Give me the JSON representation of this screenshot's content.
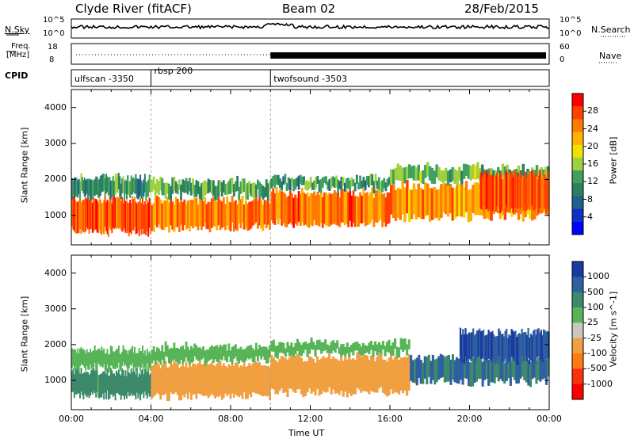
{
  "header": {
    "station": "Clyde River (fitACF)",
    "beam": "Beam 02",
    "date": "28/Feb/2015"
  },
  "top_panels": {
    "nsky_label": "N.Sky",
    "nsky_ticks": [
      "10^5",
      "10^0"
    ],
    "nsearch_label": "N.Search",
    "nsearch_ticks": [
      "10^5",
      "10^0"
    ],
    "freq_label_1": "Freq.",
    "freq_label_2": "[MHz]",
    "freq_ticks": [
      "18",
      "8"
    ],
    "nave_label": "Nave",
    "nave_ticks": [
      "60",
      "0"
    ],
    "cpid_label": "CPID",
    "cpid_segments": [
      {
        "label": "ulfscan -3350",
        "start": 0,
        "end": 4
      },
      {
        "label": "rbsp 200",
        "start": 4,
        "end": 10
      },
      {
        "label": "twofsound -3503",
        "start": 10,
        "end": 24
      }
    ]
  },
  "chart_data": [
    {
      "type": "heatmap",
      "title": "Power",
      "ylabel": "Slant Range [km]",
      "xlim": [
        0,
        24
      ],
      "ylim": [
        180,
        4500
      ],
      "yticks": [
        "1000",
        "2000",
        "3000",
        "4000"
      ],
      "colorbar_label": "Power [dB]",
      "colorbar_ticks": [
        "28",
        "24",
        "20",
        "16",
        "12",
        "8",
        "4"
      ],
      "colorbar_colors": [
        "#ff0000",
        "#ff4000",
        "#ff7a00",
        "#ffb000",
        "#f0e000",
        "#a0d040",
        "#40a060",
        "#2c8060",
        "#206090",
        "#1030c0",
        "#0000ff"
      ],
      "bands": [
        {
          "x0": 0.0,
          "x1": 4.0,
          "y0": 500,
          "y1": 1500,
          "value": 26
        },
        {
          "x0": 0.0,
          "x1": 4.0,
          "y0": 1500,
          "y1": 2100,
          "value": 10
        },
        {
          "x0": 4.0,
          "x1": 10.0,
          "y0": 600,
          "y1": 1500,
          "value": 24
        },
        {
          "x0": 4.0,
          "x1": 10.0,
          "y0": 1500,
          "y1": 2000,
          "value": 12
        },
        {
          "x0": 10.0,
          "x1": 16.0,
          "y0": 700,
          "y1": 1700,
          "value": 25
        },
        {
          "x0": 10.0,
          "x1": 16.0,
          "y0": 1700,
          "y1": 2100,
          "value": 11
        },
        {
          "x0": 16.0,
          "x1": 24.0,
          "y0": 900,
          "y1": 1900,
          "value": 22
        },
        {
          "x0": 16.0,
          "x1": 24.0,
          "y0": 1900,
          "y1": 2400,
          "value": 13
        },
        {
          "x0": 20.5,
          "x1": 24.0,
          "y0": 1100,
          "y1": 2200,
          "value": 26
        }
      ]
    },
    {
      "type": "heatmap",
      "title": "Velocity",
      "ylabel": "Slant Range [km]",
      "xlabel": "Time UT",
      "xlim": [
        0,
        24
      ],
      "ylim": [
        180,
        4500
      ],
      "xticks": [
        "00:00",
        "04:00",
        "08:00",
        "12:00",
        "16:00",
        "20:00",
        "00:00"
      ],
      "yticks": [
        "1000",
        "2000",
        "3000",
        "4000"
      ],
      "colorbar_label": "Velocity [m s^-1]",
      "colorbar_ticks": [
        "1000",
        "500",
        "100",
        "25",
        "-25",
        "-100",
        "-500",
        "-1000"
      ],
      "colorbar_colors": [
        "#1a3aa0",
        "#2f5fa0",
        "#3c8a6a",
        "#57b557",
        "#c8c8c0",
        "#f0a040",
        "#ff7a10",
        "#ff3010",
        "#ff0000"
      ],
      "bands": [
        {
          "x0": 0.0,
          "x1": 4.0,
          "y0": 500,
          "y1": 1300,
          "value": 100
        },
        {
          "x0": 0.0,
          "x1": 4.0,
          "y0": 1300,
          "y1": 1900,
          "value": 0
        },
        {
          "x0": 4.0,
          "x1": 10.0,
          "y0": 500,
          "y1": 1500,
          "value": -200
        },
        {
          "x0": 4.0,
          "x1": 10.0,
          "y0": 1500,
          "y1": 2000,
          "value": 0
        },
        {
          "x0": 10.0,
          "x1": 17.0,
          "y0": 600,
          "y1": 1700,
          "value": -150
        },
        {
          "x0": 10.0,
          "x1": 17.0,
          "y0": 1700,
          "y1": 2100,
          "value": 0
        },
        {
          "x0": 17.0,
          "x1": 24.0,
          "y0": 900,
          "y1": 1700,
          "value": 300
        },
        {
          "x0": 19.5,
          "x1": 24.0,
          "y0": 1500,
          "y1": 2400,
          "value": 700
        }
      ]
    }
  ]
}
